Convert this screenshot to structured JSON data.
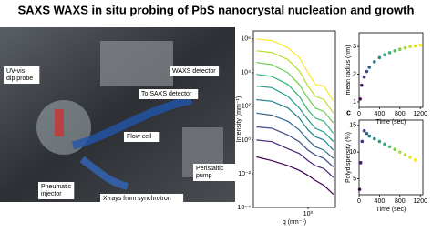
{
  "title": "SAXS WAXS in situ probing of PbS nanocrystal nucleation and growth",
  "photo": {
    "labels": [
      [
        "UV-vis",
        "dip probe"
      ],
      [
        "WAXS detector"
      ],
      [
        "To SAXS detector"
      ],
      [
        "Flow cell"
      ],
      [
        "Peristaltic",
        "pump"
      ],
      [
        "Pneumatic",
        "injector"
      ],
      [
        "X-rays from synchrotron"
      ]
    ]
  },
  "panel_label": "c",
  "chart_data": [
    {
      "type": "line",
      "xlabel": "q (nm⁻¹)",
      "ylabel": "Intensity (mm⁻¹)",
      "xlog": true,
      "ylog": true,
      "x": [
        0.27,
        0.4,
        0.6,
        0.8,
        1.0,
        1.2,
        1.5,
        1.9
      ],
      "xlim": [
        0.25,
        2
      ],
      "xticks": [
        {
          "value": 1,
          "label": "10⁰"
        }
      ],
      "ylim": [
        0.0001,
        3000000
      ],
      "yticks": [
        {
          "value": 1000000,
          "label": "10⁶"
        },
        {
          "value": 10000,
          "label": "10⁴"
        },
        {
          "value": 100,
          "label": "10²"
        },
        {
          "value": 1,
          "label": "10⁰"
        },
        {
          "value": 0.01,
          "label": "10⁻²"
        },
        {
          "value": 0.0001,
          "label": "10⁻⁴"
        }
      ],
      "series": [
        {
          "color": "#440154",
          "values": [
            0.1,
            0.06,
            0.03,
            0.016,
            0.008,
            0.004,
            0.002,
            0.0006
          ]
        },
        {
          "color": "#482878",
          "values": [
            1,
            0.8,
            0.3,
            0.16,
            0.06,
            0.03,
            0.02,
            0.006
          ]
        },
        {
          "color": "#3e4989",
          "values": [
            6,
            5,
            2,
            0.8,
            0.25,
            0.13,
            0.08,
            0.025
          ]
        },
        {
          "color": "#31688e",
          "values": [
            40,
            30,
            13,
            4,
            1,
            0.4,
            0.25,
            0.08
          ]
        },
        {
          "color": "#26828e",
          "values": [
            250,
            200,
            80,
            20,
            4,
            1.6,
            1,
            0.25
          ]
        },
        {
          "color": "#1f9e89",
          "values": [
            1600,
            1300,
            400,
            80,
            16,
            5,
            3,
            0.8
          ]
        },
        {
          "color": "#35b779",
          "values": [
            8000,
            6000,
            2000,
            400,
            60,
            20,
            13,
            2.5
          ]
        },
        {
          "color": "#6ece58",
          "values": [
            40000,
            30000,
            10000,
            2000,
            300,
            80,
            50,
            10
          ]
        },
        {
          "color": "#b5de2b",
          "values": [
            200000,
            160000,
            60000,
            13000,
            1600,
            400,
            250,
            40
          ]
        },
        {
          "color": "#fde725",
          "values": [
            1000000,
            800000,
            300000,
            80000,
            10000,
            2000,
            1600,
            200
          ]
        }
      ]
    },
    {
      "type": "scatter",
      "xlabel": "Time (sec)",
      "ylabel": "mean radius (nm)",
      "x": [
        20,
        50,
        100,
        150,
        200,
        300,
        400,
        500,
        600,
        700,
        800,
        900,
        1000,
        1100,
        1200
      ],
      "values": [
        1.1,
        1.6,
        1.9,
        2.1,
        2.25,
        2.45,
        2.6,
        2.7,
        2.78,
        2.85,
        2.9,
        2.95,
        3.0,
        3.02,
        3.05
      ],
      "colors": [
        "#440154",
        "#3e4989",
        "#26828e",
        "#35b779",
        "#b5de2b",
        "#fde725"
      ],
      "xlim": [
        0,
        1250
      ],
      "xticks": [
        0,
        400,
        800,
        1200
      ],
      "ylim": [
        0.8,
        3.5
      ],
      "yticks": [
        1,
        2,
        3
      ]
    },
    {
      "type": "scatter",
      "xlabel": "Time (sec)",
      "ylabel": "Polydispersity (%)",
      "x": [
        10,
        30,
        60,
        100,
        150,
        200,
        300,
        400,
        500,
        600,
        700,
        800,
        900,
        1000,
        1100
      ],
      "values": [
        3,
        8,
        12,
        14,
        13.5,
        13,
        12.5,
        12,
        11.5,
        11,
        10.5,
        10,
        9.5,
        9,
        8.5
      ],
      "colors": [
        "#440154",
        "#3e4989",
        "#26828e",
        "#35b779",
        "#b5de2b",
        "#fde725"
      ],
      "xlim": [
        0,
        1250
      ],
      "xticks": [
        0,
        400,
        800,
        1200
      ],
      "ylim": [
        2,
        16
      ],
      "yticks": [
        5,
        10,
        15
      ]
    }
  ]
}
